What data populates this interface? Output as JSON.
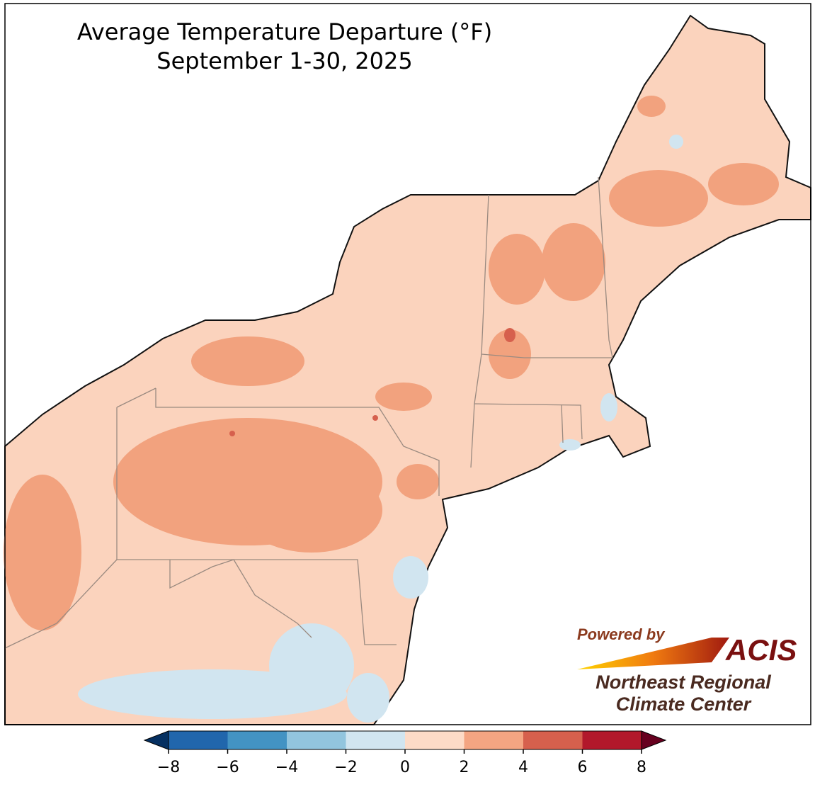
{
  "map": {
    "title": "Average Temperature Departure (°F)",
    "subtitle": "September 1-30, 2025",
    "colorbar": {
      "ticks": [
        {
          "value": -8,
          "label": "−8"
        },
        {
          "value": -6,
          "label": "−6"
        },
        {
          "value": -4,
          "label": "−4"
        },
        {
          "value": -2,
          "label": "−2"
        },
        0,
        2,
        4,
        6,
        8
      ],
      "colors": [
        "#2166ac",
        "#4393c3",
        "#92c5de",
        "#d1e5f0",
        "#fddbc7",
        "#f4a582",
        "#d6604d",
        "#b2182b"
      ],
      "under_color": "#053061",
      "over_color": "#67001f"
    },
    "logo": {
      "tagline": "Powered by",
      "name": "ACIS",
      "org_line1": "Northeast Regional",
      "org_line2": "Climate Center"
    }
  }
}
